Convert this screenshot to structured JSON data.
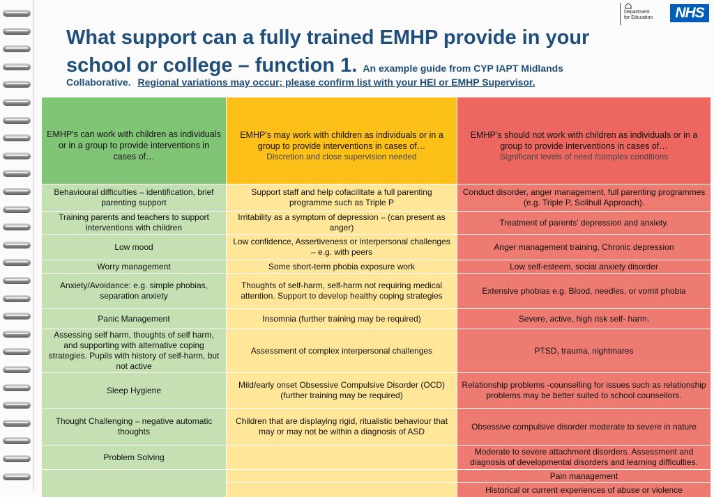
{
  "logos": {
    "dfe_line1": "Department",
    "dfe_line2": "for Education",
    "nhs": "NHS"
  },
  "title": {
    "main": "What support can a fully trained EMHP provide in your school or college – function 1.",
    "sub": "An example guide from CYP IAPT Midlands",
    "sub_cont": "Collaborative.",
    "caveat": "Regional variations may occur; please confirm list with your HEI or EMHP Supervisor."
  },
  "headers": {
    "can": "EMHP's can work with children as individuals or in a group to provide interventions in cases of…",
    "may": "EMHP’s may work with children as individuals or in a group to provide interventions in cases of…",
    "may_note": "Discretion and close supervision needed",
    "should_not": "EMHP’s should not work with children as individuals or in a group to provide interventions in cases of…",
    "should_not_note": "Significant levels of need /complex conditions"
  },
  "rows": {
    "can": [
      "Behavioural difficulties – identification, brief parenting support",
      "Training parents and teachers to support interventions with children",
      "Low mood",
      "Worry management",
      "Anxiety/Avoidance: e.g. simple phobias, separation anxiety",
      "Panic Management",
      "Assessing self harm, thoughts of self harm, and supporting with alternative coping strategies. Pupils with history of self-harm, but not active",
      "Sleep Hygiene",
      "Thought Challenging – negative automatic thoughts",
      "Problem Solving"
    ],
    "may": [
      "Support staff and help cofacilitate a full parenting programme such as Triple P",
      "Irritability as a symptom of depression – (can present as anger)",
      "Low confidence, Assertiveness or interpersonal challenges – e.g. with peers",
      "Some short-term phobia exposure work",
      "Thoughts of self-harm, self-harm not requiring medical attention. Support to develop healthy coping strategies",
      "Insomnia (further training may be required)",
      "Assessment of complex interpersonal challenges",
      "Mild/early onset Obsessive Compulsive Disorder (OCD) (further training may be required)",
      "Children that are displaying rigid, ritualistic behaviour that may or may not be within a diagnosis of ASD"
    ],
    "should_not": [
      "Conduct disorder, anger management, full parenting programmes (e.g. Triple P, Solihull Approach).",
      "Treatment of parents’ depression and anxiety.",
      "Anger management training, Chronic depression",
      "Low self-esteem, social anxiety disorder",
      "Extensive phobias e.g. Blood, needles, or vomit phobia",
      "Severe, active, high risk self- harm.",
      "PTSD, trauma, nightmares",
      "Relationship problems -counselling for issues such as relationship problems may be better suited to school counsellors.",
      "Obsessive compulsive disorder moderate to severe in nature",
      "Moderate to severe attachment disorders. Assessment and diagnosis of developmental disorders and learning difficulties.",
      "Pain management",
      "Historical or current experiences of abuse or violence"
    ]
  },
  "colors": {
    "title": "#1f4e79",
    "green_header": "#80c476",
    "green_cell": "#c5e0b3",
    "amber_header": "#fcc018",
    "amber_cell": "#ffe699",
    "red_header": "#eb6760",
    "red_cell": "#ee7b72",
    "nhs_blue": "#005eb8"
  }
}
